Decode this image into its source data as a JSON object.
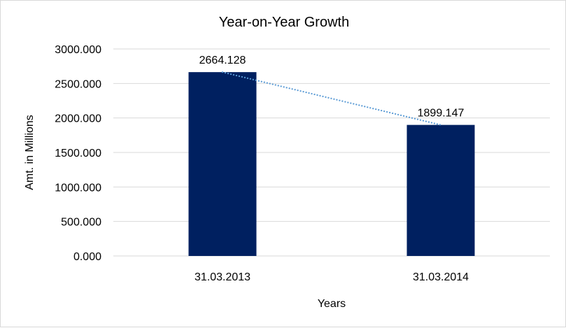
{
  "chart_data": {
    "type": "bar",
    "title": "Year-on-Year Growth",
    "xlabel": "Years",
    "ylabel": "Amt. in Millions",
    "categories": [
      "31.03.2013",
      "31.03.2014"
    ],
    "values": [
      2664.128,
      1899.147
    ],
    "data_labels": [
      "2664.128",
      "1899.147"
    ],
    "ylim": [
      0,
      3000
    ],
    "yticks": [
      "0.000",
      "500.000",
      "1000.000",
      "1500.000",
      "2000.000",
      "2500.000",
      "3000.000"
    ],
    "grid": true,
    "legend": "none",
    "trendline": "linear, dotted",
    "colors": {
      "bar": "#002060",
      "trendline": "#5b9bd5",
      "grid": "#d9d9d9"
    }
  }
}
